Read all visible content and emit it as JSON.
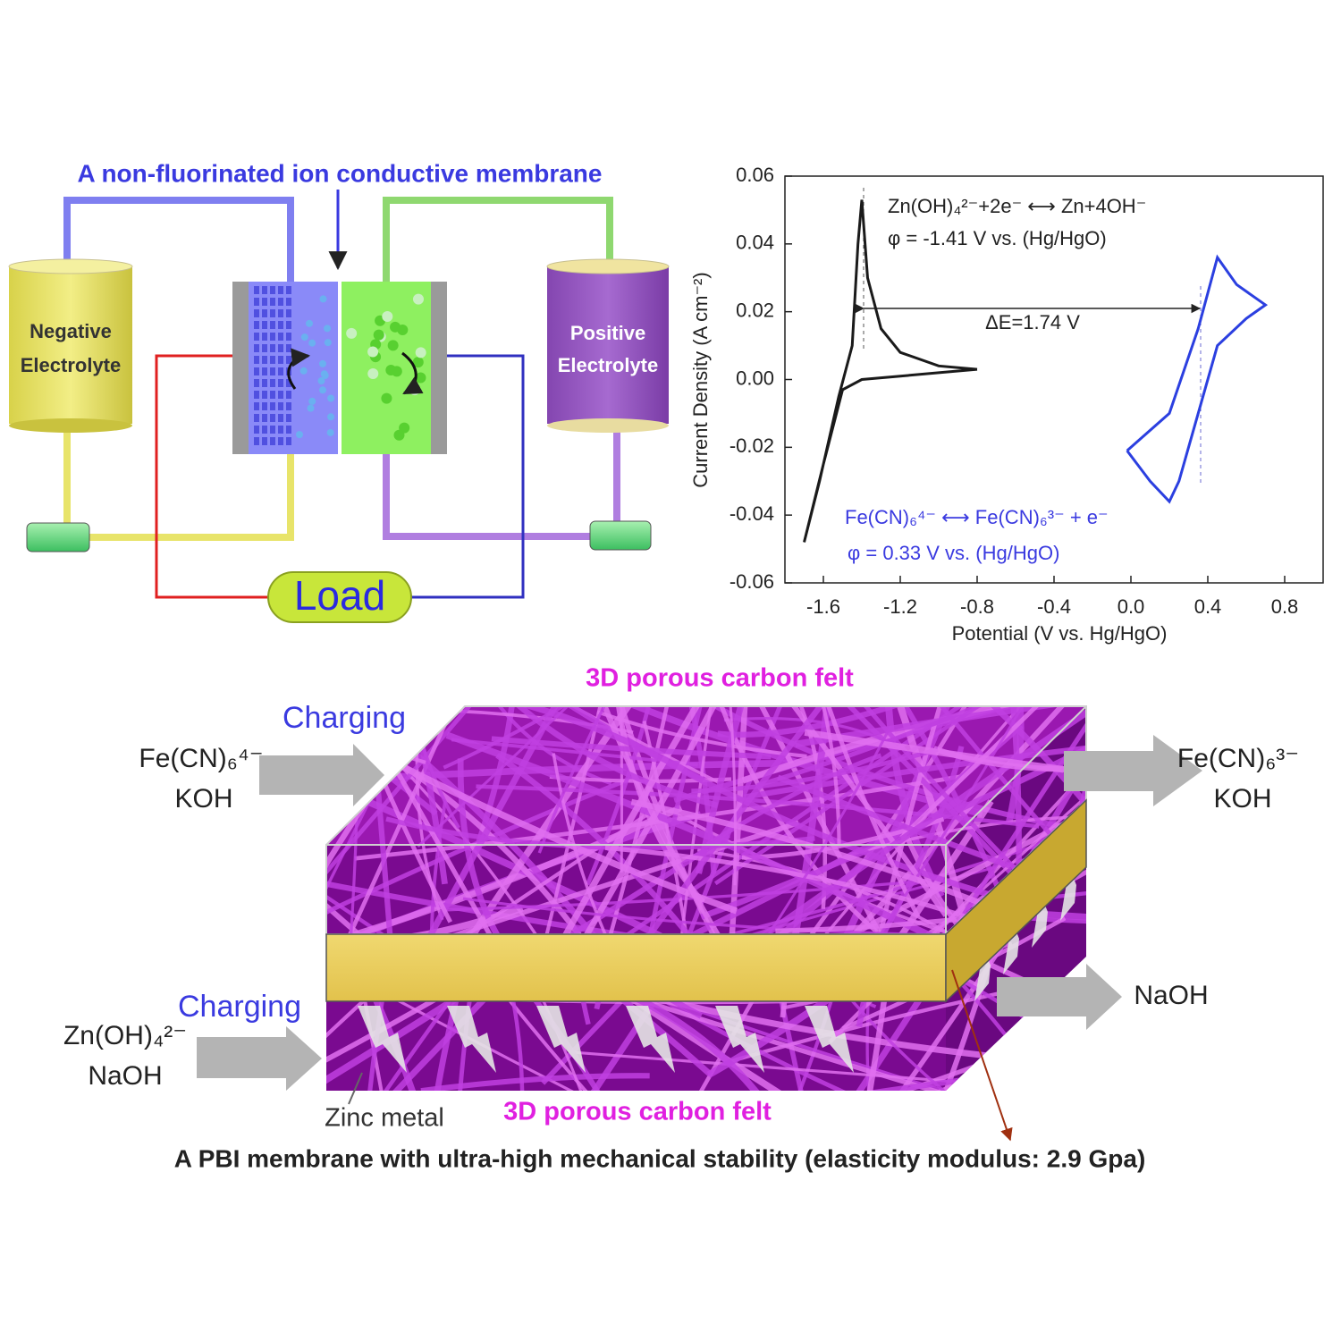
{
  "schematic": {
    "title": "A non-fluorinated ion conductive membrane",
    "negative_tank": [
      "Negative",
      "Electrolyte"
    ],
    "positive_tank": [
      "Positive",
      "Electrolyte"
    ],
    "load": "Load"
  },
  "chart_data": {
    "type": "line",
    "xlabel": "Potential (V vs. Hg/HgO)",
    "ylabel": "Current Density (A cm⁻²)",
    "xlim": [
      -1.8,
      1.0
    ],
    "xticks": [
      -1.6,
      -1.2,
      -0.8,
      -0.4,
      {
        "value": 0,
        "label": "0.0"
      },
      0.4,
      0.8
    ],
    "ylim": [
      -0.06,
      0.06
    ],
    "yticks": [
      -0.06,
      -0.04,
      -0.02,
      {
        "value": 0,
        "label": "0.00"
      },
      0.02,
      0.04,
      0.06
    ],
    "annotations": [
      "Zn(OH)₄²⁻+2e⁻ ⟷ Zn+4OH⁻",
      "φ = -1.41 V vs. (Hg/HgO)",
      "ΔE=1.74 V",
      "Fe(CN)₆⁴⁻ ⟷ Fe(CN)₆³⁻ + e⁻",
      "φ = 0.33 V vs. (Hg/HgO)"
    ],
    "series": [
      {
        "color": "#1a1a1a",
        "x": [
          -0.8,
          -1.0,
          -1.2,
          -1.4,
          -1.5,
          -1.6,
          -1.7,
          -1.62,
          -1.52,
          -1.45,
          -1.42,
          -1.4,
          -1.37,
          -1.3,
          -1.2,
          -1.0,
          -0.8
        ],
        "values": [
          0.003,
          0.002,
          0.001,
          0.0,
          -0.003,
          -0.025,
          -0.048,
          -0.03,
          -0.005,
          0.01,
          0.04,
          0.053,
          0.03,
          0.015,
          0.008,
          0.004,
          0.003
        ]
      },
      {
        "color": "#2b3fe0",
        "x": [
          -0.02,
          0.2,
          0.35,
          0.45,
          0.55,
          0.7,
          0.6,
          0.45,
          0.35,
          0.25,
          0.2,
          0.1,
          -0.02
        ],
        "values": [
          -0.021,
          -0.01,
          0.015,
          0.036,
          0.028,
          0.022,
          0.018,
          0.01,
          -0.01,
          -0.03,
          -0.036,
          -0.03,
          -0.021
        ]
      }
    ]
  },
  "membrane_schematic": {
    "top_label": "3D porous carbon felt",
    "bottom_label": "3D porous carbon felt",
    "charging_top": "Charging",
    "charging_bottom": "Charging",
    "inlet_top": [
      "Fe(CN)₆⁴⁻",
      "KOH"
    ],
    "outlet_top": [
      "Fe(CN)₆³⁻",
      "KOH"
    ],
    "inlet_bottom": [
      "Zn(OH)₄²⁻",
      "NaOH"
    ],
    "outlet_bottom": "NaOH",
    "zinc_label": "Zinc metal",
    "caption": "A PBI membrane with ultra-high mechanical stability (elasticity modulus: 2.9 Gpa)"
  }
}
